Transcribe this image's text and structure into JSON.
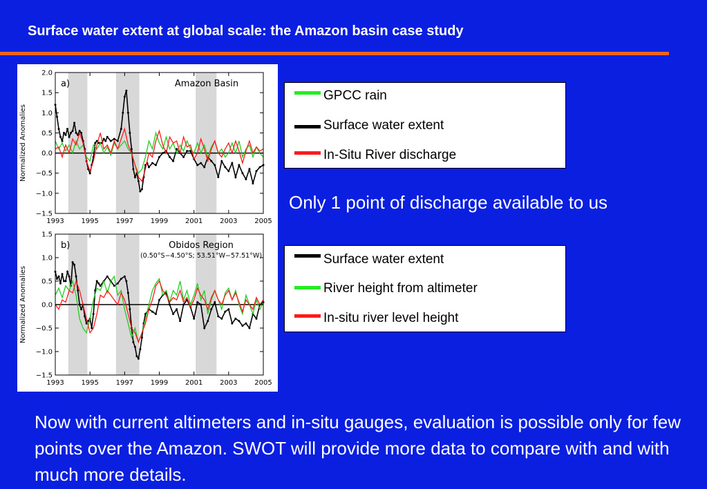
{
  "header": {
    "title": "Surface water extent at global scale: the Amazon basin case study"
  },
  "colors": {
    "background": "#0b1fe0",
    "accent_rule": "#f0641e",
    "green": "#22cc22",
    "black": "#000000",
    "red": "#ff1a1a",
    "shade": "#d8d8d8"
  },
  "chart_data": [
    {
      "type": "line",
      "panel_label": "a)",
      "title": "Amazon Basin",
      "subtitle": "",
      "xlabel": "",
      "ylabel": "Normalized Anomalies",
      "xlim": [
        1993,
        2005
      ],
      "ylim": [
        -1.5,
        2.0
      ],
      "yticks": [
        "2.0",
        "1.5",
        "1.0",
        "0.5",
        "0.0",
        "−0.5",
        "−1.0",
        "−1.5"
      ],
      "xticks": [
        "1993",
        "1995",
        "1997",
        "1999",
        "2001",
        "2003",
        "2005"
      ],
      "shaded_x_ranges": [
        [
          1993.75,
          1994.85
        ],
        [
          1996.5,
          1997.85
        ],
        [
          2001.1,
          2002.3
        ]
      ],
      "zero_line": true,
      "series": [
        {
          "color": "black",
          "markers": true,
          "x": [
            1993.0,
            1993.1,
            1993.2,
            1993.3,
            1993.4,
            1993.5,
            1993.6,
            1993.7,
            1993.8,
            1993.9,
            1994.0,
            1994.1,
            1994.2,
            1994.3,
            1994.4,
            1994.5,
            1994.6,
            1994.7,
            1994.8,
            1994.9,
            1995.0,
            1995.1,
            1995.2,
            1995.3,
            1995.4,
            1995.5,
            1995.6,
            1995.7,
            1995.8,
            1995.9,
            1996.0,
            1996.2,
            1996.4,
            1996.6,
            1996.8,
            1996.9,
            1997.0,
            1997.1,
            1997.2,
            1997.3,
            1997.4,
            1997.5,
            1997.6,
            1997.7,
            1997.8,
            1997.9,
            1998.0,
            1998.1,
            1998.2,
            1998.3,
            1998.4,
            1998.6,
            1998.8,
            1999.0,
            1999.2,
            1999.4,
            1999.6,
            1999.8,
            2000.0,
            2000.2,
            2000.4,
            2000.6,
            2000.8,
            2001.0,
            2001.2,
            2001.4,
            2001.6,
            2001.8,
            2002.0,
            2002.2,
            2002.4,
            2002.6,
            2002.8,
            2003.0,
            2003.2,
            2003.4,
            2003.6,
            2003.8,
            2004.0,
            2004.2,
            2004.4,
            2004.6,
            2004.8,
            2005.0
          ],
          "y": [
            1.2,
            0.9,
            0.6,
            0.4,
            0.3,
            0.5,
            0.45,
            0.6,
            0.4,
            0.5,
            0.55,
            0.75,
            0.5,
            0.45,
            0.55,
            0.5,
            0.3,
            0.1,
            -0.2,
            -0.4,
            -0.5,
            -0.3,
            -0.1,
            0.25,
            0.3,
            0.25,
            0.25,
            0.25,
            0.35,
            0.3,
            0.4,
            0.3,
            0.35,
            0.3,
            0.6,
            1.0,
            1.4,
            1.55,
            1.0,
            0.5,
            0.1,
            -0.4,
            -0.6,
            -0.5,
            -0.7,
            -0.95,
            -0.9,
            -0.6,
            -0.3,
            -0.25,
            -0.35,
            -0.25,
            -0.3,
            -0.1,
            0.0,
            0.05,
            -0.1,
            -0.2,
            0.1,
            0.0,
            -0.1,
            0.05,
            0.05,
            -0.15,
            -0.3,
            -0.25,
            -0.35,
            -0.1,
            -0.2,
            -0.3,
            -0.6,
            -0.2,
            -0.35,
            -0.45,
            -0.25,
            -0.6,
            -0.3,
            -0.5,
            -0.65,
            -0.4,
            -0.75,
            -0.45,
            -0.35,
            -0.3
          ]
        },
        {
          "color": "green",
          "markers": false,
          "x": [
            1993.0,
            1993.2,
            1993.4,
            1993.6,
            1993.8,
            1994.0,
            1994.2,
            1994.4,
            1994.6,
            1994.8,
            1995.0,
            1995.2,
            1995.4,
            1995.6,
            1995.8,
            1996.0,
            1996.2,
            1996.4,
            1996.6,
            1996.8,
            1997.0,
            1997.2,
            1997.4,
            1997.6,
            1997.8,
            1998.0,
            1998.2,
            1998.4,
            1998.6,
            1998.8,
            1999.0,
            1999.2,
            1999.4,
            1999.6,
            1999.8,
            2000.0,
            2000.2,
            2000.4,
            2000.6,
            2000.8,
            2001.0,
            2001.2,
            2001.4,
            2001.6,
            2001.8,
            2002.0,
            2002.2,
            2002.4,
            2002.6,
            2002.8,
            2003.0,
            2003.2,
            2003.4,
            2003.6,
            2003.8,
            2004.0,
            2004.2,
            2004.4,
            2004.6,
            2004.8,
            2005.0
          ],
          "y": [
            0.3,
            0.1,
            0.25,
            0.05,
            0.2,
            0.0,
            0.3,
            0.1,
            0.2,
            -0.1,
            -0.2,
            0.2,
            0.1,
            0.25,
            0.0,
            0.15,
            -0.05,
            0.25,
            0.1,
            0.2,
            0.3,
            0.1,
            0.0,
            -0.3,
            -0.5,
            -0.4,
            -0.1,
            0.3,
            0.1,
            0.5,
            0.25,
            0.1,
            0.4,
            0.1,
            0.25,
            0.0,
            0.2,
            0.05,
            0.3,
            0.1,
            0.0,
            0.25,
            0.0,
            0.2,
            -0.1,
            0.15,
            0.3,
            0.0,
            0.1,
            -0.1,
            0.0,
            0.25,
            0.0,
            0.3,
            -0.1,
            0.1,
            0.2,
            -0.1,
            0.15,
            0.0,
            -0.1
          ]
        },
        {
          "color": "red",
          "markers": false,
          "x": [
            1993.0,
            1993.2,
            1993.4,
            1993.6,
            1993.8,
            1994.0,
            1994.2,
            1994.4,
            1994.6,
            1994.8,
            1995.0,
            1995.2,
            1995.4,
            1995.6,
            1995.8,
            1996.0,
            1996.2,
            1996.4,
            1996.6,
            1996.8,
            1997.0,
            1997.2,
            1997.4,
            1997.6,
            1997.8,
            1998.0,
            1998.2,
            1998.4,
            1998.6,
            1998.8,
            1999.0,
            1999.2,
            1999.4,
            1999.6,
            1999.8,
            2000.0,
            2000.2,
            2000.4,
            2000.6,
            2000.8,
            2001.0,
            2001.2,
            2001.4,
            2001.6,
            2001.8,
            2002.0,
            2002.2,
            2002.4,
            2002.6,
            2002.8,
            2003.0,
            2003.2,
            2003.4,
            2003.6,
            2003.8,
            2004.0,
            2004.2,
            2004.4,
            2004.6,
            2004.8,
            2005.0
          ],
          "y": [
            0.1,
            0.15,
            -0.1,
            0.2,
            0.0,
            0.35,
            0.2,
            0.5,
            0.25,
            -0.2,
            -0.45,
            -0.2,
            0.2,
            0.5,
            0.1,
            0.2,
            0.0,
            0.3,
            0.1,
            0.35,
            0.6,
            0.2,
            0.0,
            -0.3,
            -0.6,
            -0.7,
            -0.4,
            0.0,
            -0.1,
            0.3,
            0.55,
            0.2,
            0.0,
            0.4,
            0.25,
            0.3,
            0.0,
            0.4,
            0.15,
            0.2,
            -0.15,
            0.0,
            0.35,
            0.1,
            -0.2,
            0.1,
            0.3,
            0.0,
            -0.1,
            0.1,
            0.25,
            0.0,
            0.3,
            0.05,
            -0.25,
            0.05,
            0.3,
            0.0,
            0.15,
            0.05,
            0.1
          ]
        }
      ]
    },
    {
      "type": "line",
      "panel_label": "b)",
      "title": "Obidos Region",
      "subtitle": "(0.50°S−4.50°S; 53.51°W−57.51°W)",
      "xlabel": "",
      "ylabel": "Normalized Anomalies",
      "xlim": [
        1993,
        2005
      ],
      "ylim": [
        -1.5,
        1.5
      ],
      "yticks": [
        "1.5",
        "1.0",
        "0.5",
        "0.0",
        "−0.5",
        "−1.0",
        "−1.5"
      ],
      "xticks": [
        "1993",
        "1995",
        "1997",
        "1999",
        "2001",
        "2003",
        "2005"
      ],
      "shaded_x_ranges": [
        [
          1993.75,
          1994.85
        ],
        [
          1996.5,
          1997.85
        ],
        [
          2001.1,
          2002.3
        ]
      ],
      "zero_line": true,
      "series": [
        {
          "color": "black",
          "markers": true,
          "x": [
            1993.0,
            1993.1,
            1993.2,
            1993.3,
            1993.4,
            1993.5,
            1993.6,
            1993.7,
            1993.8,
            1993.9,
            1994.0,
            1994.1,
            1994.2,
            1994.3,
            1994.4,
            1994.5,
            1994.6,
            1994.7,
            1994.8,
            1994.9,
            1995.0,
            1995.1,
            1995.2,
            1995.3,
            1995.4,
            1995.5,
            1995.6,
            1995.8,
            1996.0,
            1996.2,
            1996.4,
            1996.6,
            1996.8,
            1997.0,
            1997.1,
            1997.2,
            1997.3,
            1997.4,
            1997.5,
            1997.6,
            1997.7,
            1997.8,
            1997.9,
            1998.0,
            1998.1,
            1998.2,
            1998.4,
            1998.6,
            1998.8,
            1999.0,
            1999.2,
            1999.4,
            1999.6,
            1999.8,
            2000.0,
            2000.2,
            2000.4,
            2000.6,
            2000.8,
            2001.0,
            2001.2,
            2001.4,
            2001.6,
            2001.8,
            2002.0,
            2002.2,
            2002.4,
            2002.6,
            2002.8,
            2003.0,
            2003.2,
            2003.4,
            2003.6,
            2003.8,
            2004.0,
            2004.2,
            2004.4,
            2004.6,
            2004.8,
            2005.0
          ],
          "y": [
            0.7,
            0.55,
            0.6,
            0.45,
            0.65,
            0.5,
            0.5,
            0.7,
            0.6,
            0.4,
            0.9,
            0.85,
            0.6,
            0.3,
            0.0,
            -0.1,
            0.0,
            -0.25,
            -0.4,
            -0.35,
            -0.3,
            -0.5,
            -0.2,
            0.3,
            0.5,
            0.45,
            0.4,
            0.5,
            0.6,
            0.5,
            0.4,
            0.45,
            0.55,
            0.6,
            0.5,
            0.25,
            -0.1,
            -0.5,
            -0.8,
            -0.9,
            -1.1,
            -1.15,
            -0.95,
            -0.7,
            -0.4,
            -0.2,
            -0.1,
            -0.15,
            -0.2,
            0.1,
            0.2,
            0.25,
            0.0,
            -0.2,
            -0.1,
            -0.35,
            0.0,
            0.1,
            -0.05,
            -0.3,
            0.05,
            0.0,
            -0.5,
            -0.35,
            -0.1,
            0.05,
            -0.25,
            -0.3,
            -0.15,
            -0.1,
            -0.4,
            -0.3,
            -0.35,
            -0.45,
            -0.4,
            -0.5,
            -0.2,
            -0.3,
            0.0,
            0.05
          ]
        },
        {
          "color": "green",
          "markers": false,
          "x": [
            1993.0,
            1993.2,
            1993.4,
            1993.6,
            1993.8,
            1994.0,
            1994.2,
            1994.4,
            1994.6,
            1994.8,
            1995.0,
            1995.2,
            1995.4,
            1995.6,
            1995.8,
            1996.0,
            1996.2,
            1996.4,
            1996.6,
            1996.8,
            1997.0,
            1997.2,
            1997.4,
            1997.6,
            1997.8,
            1998.0,
            1998.2,
            1998.4,
            1998.6,
            1998.8,
            1999.0,
            1999.2,
            1999.4,
            1999.6,
            1999.8,
            2000.0,
            2000.2,
            2000.4,
            2000.6,
            2000.8,
            2001.0,
            2001.2,
            2001.4,
            2001.6,
            2001.8,
            2002.0,
            2002.2,
            2002.4,
            2002.6,
            2002.8,
            2003.0,
            2003.2,
            2003.4,
            2003.6,
            2003.8,
            2004.0,
            2004.2,
            2004.4,
            2004.6,
            2004.8,
            2005.0
          ],
          "y": [
            0.2,
            0.35,
            0.15,
            0.4,
            0.3,
            0.5,
            0.2,
            -0.3,
            -0.5,
            -0.6,
            -0.3,
            0.1,
            0.35,
            0.3,
            0.5,
            0.25,
            0.5,
            0.6,
            0.2,
            0.3,
            -0.1,
            -0.4,
            -0.7,
            -0.5,
            -0.8,
            -0.6,
            -0.3,
            0.0,
            0.3,
            0.45,
            0.55,
            0.2,
            0.3,
            0.05,
            0.3,
            0.2,
            0.5,
            0.1,
            0.3,
            0.0,
            0.2,
            0.45,
            0.1,
            0.3,
            -0.2,
            0.1,
            0.3,
            0.1,
            -0.1,
            0.25,
            0.35,
            0.1,
            0.3,
            0.0,
            -0.2,
            0.2,
            0.0,
            -0.2,
            0.1,
            -0.1,
            0.05
          ]
        },
        {
          "color": "red",
          "markers": false,
          "x": [
            1993.0,
            1993.2,
            1993.4,
            1993.6,
            1993.8,
            1994.0,
            1994.2,
            1994.4,
            1994.6,
            1994.8,
            1995.0,
            1995.2,
            1995.4,
            1995.6,
            1995.8,
            1996.0,
            1996.2,
            1996.4,
            1996.6,
            1996.8,
            1997.0,
            1997.2,
            1997.4,
            1997.6,
            1997.8,
            1998.0,
            1998.2,
            1998.4,
            1998.6,
            1998.8,
            1999.0,
            1999.2,
            1999.4,
            1999.6,
            1999.8,
            2000.0,
            2000.2,
            2000.4,
            2000.6,
            2000.8,
            2001.0,
            2001.2,
            2001.4,
            2001.6,
            2001.8,
            2002.0,
            2002.2,
            2002.4,
            2002.6,
            2002.8,
            2003.0,
            2003.2,
            2003.4,
            2003.6,
            2003.8,
            2004.0,
            2004.2,
            2004.4,
            2004.6,
            2004.8,
            2005.0
          ],
          "y": [
            0.0,
            -0.1,
            0.1,
            0.05,
            0.3,
            0.25,
            0.5,
            0.3,
            0.0,
            -0.3,
            -0.6,
            -0.5,
            -0.2,
            0.2,
            0.15,
            0.3,
            0.2,
            0.1,
            0.0,
            0.25,
            0.1,
            -0.2,
            -0.5,
            -0.6,
            -0.8,
            -0.6,
            -0.4,
            -0.1,
            0.1,
            0.4,
            0.5,
            0.3,
            0.2,
            0.05,
            0.15,
            0.1,
            0.3,
            0.05,
            0.15,
            -0.05,
            0.1,
            0.35,
            0.2,
            0.1,
            -0.1,
            0.15,
            0.3,
            0.1,
            0.0,
            0.2,
            0.3,
            0.1,
            0.25,
            0.05,
            -0.15,
            0.1,
            0.0,
            -0.1,
            0.15,
            0.0,
            0.1
          ]
        }
      ]
    }
  ],
  "legend1": {
    "items": [
      {
        "label": "GPCC rain",
        "color": "#22ee22"
      },
      {
        "label": "Surface water extent",
        "color": "#000000"
      },
      {
        "label": " In-Situ River discharge",
        "color": "#ff1a1a"
      }
    ]
  },
  "note": "Only 1 point of discharge available to us",
  "legend2": {
    "items": [
      {
        "label": "Surface water extent",
        "color": "#000000"
      },
      {
        "label": "River height from altimeter",
        "color": "#22ee22"
      },
      {
        "label": "In-situ river level height",
        "color": "#ff1a1a"
      }
    ]
  },
  "paragraph": "Now with current altimeters and in-situ gauges, evaluation is possible only for few points over the Amazon. SWOT will provide more data to compare with and with much more details."
}
